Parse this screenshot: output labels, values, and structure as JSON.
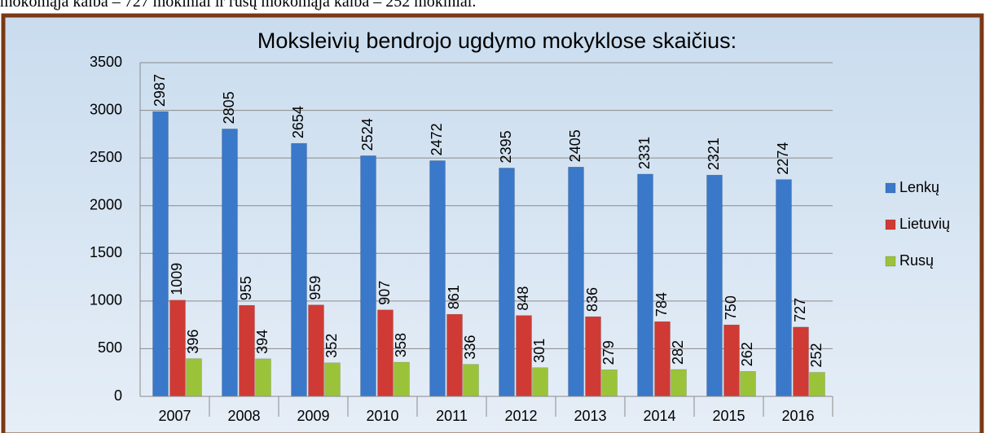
{
  "intro": "mokomąja kalba – 727 mokiniai ir rusų mokomąja kalba – 252 mokiniai.",
  "chart_data": {
    "type": "bar",
    "title": "Moksleivių bendrojo ugdymo  mokyklose skaičius:",
    "categories": [
      "2007",
      "2008",
      "2009",
      "2010",
      "2011",
      "2012",
      "2013",
      "2014",
      "2015",
      "2016"
    ],
    "series": [
      {
        "name": "Lenkų",
        "color": "#3a78c9",
        "values": [
          2987,
          2805,
          2654,
          2524,
          2472,
          2395,
          2405,
          2331,
          2321,
          2274
        ]
      },
      {
        "name": "Lietuvių",
        "color": "#d03a34",
        "values": [
          1009,
          955,
          959,
          907,
          861,
          848,
          836,
          784,
          750,
          727
        ]
      },
      {
        "name": "Rusų",
        "color": "#9bc33a",
        "values": [
          396,
          394,
          352,
          358,
          336,
          301,
          279,
          282,
          262,
          252
        ]
      }
    ],
    "ylim": [
      0,
      3500
    ],
    "yticks": [
      0,
      500,
      1000,
      1500,
      2000,
      2500,
      3000,
      3500
    ],
    "grid": true,
    "legend": "right"
  }
}
